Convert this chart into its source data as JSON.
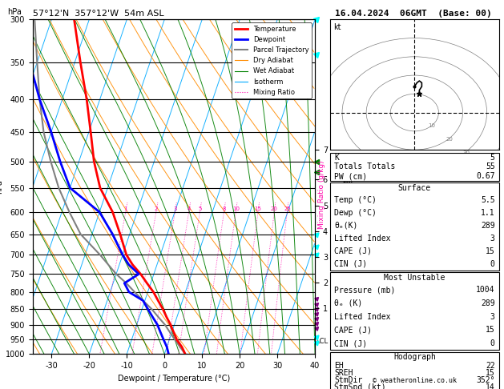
{
  "title_left": "57°12'N  357°12'W  54m ASL",
  "title_right": "16.04.2024  06GMT  (Base: 00)",
  "xlabel": "Dewpoint / Temperature (°C)",
  "ylabel_left": "hPa",
  "pressure_ticks": [
    300,
    350,
    400,
    450,
    500,
    550,
    600,
    650,
    700,
    750,
    800,
    850,
    900,
    950,
    1000
  ],
  "temp_xticks": [
    -30,
    -20,
    -10,
    0,
    10,
    20,
    30,
    40
  ],
  "km_ticks": [
    1,
    2,
    3,
    4,
    5,
    6,
    7
  ],
  "km_pressures": [
    847,
    773,
    705,
    643,
    586,
    533,
    480
  ],
  "mixing_ratio_values": [
    1,
    2,
    3,
    4,
    5,
    8,
    10,
    15,
    20,
    25
  ],
  "temp_profile_pressure": [
    1000,
    975,
    950,
    925,
    900,
    875,
    850,
    825,
    800,
    775,
    750,
    725,
    700,
    650,
    600,
    550,
    500,
    450,
    400,
    350,
    300
  ],
  "temp_profile_temp": [
    5.5,
    4.0,
    2.0,
    0.5,
    -1.0,
    -2.8,
    -4.5,
    -6.5,
    -8.5,
    -11.0,
    -13.5,
    -16.5,
    -19.0,
    -22.5,
    -26.5,
    -32.0,
    -36.0,
    -39.5,
    -43.5,
    -48.5,
    -54.0
  ],
  "dewp_profile_pressure": [
    1000,
    975,
    950,
    925,
    900,
    875,
    850,
    825,
    800,
    775,
    750,
    725,
    700,
    650,
    600,
    550,
    500,
    450,
    400,
    350,
    300
  ],
  "dewp_profile_temp": [
    1.1,
    0.0,
    -1.5,
    -3.0,
    -4.5,
    -6.5,
    -8.5,
    -10.5,
    -15.0,
    -17.0,
    -14.0,
    -17.5,
    -20.0,
    -24.5,
    -30.0,
    -40.0,
    -45.0,
    -50.0,
    -56.0,
    -62.0,
    -68.0
  ],
  "parcel_pressure": [
    1000,
    975,
    950,
    925,
    900,
    875,
    850,
    825,
    800,
    775,
    750,
    700,
    650,
    600,
    550,
    500,
    450,
    400,
    350,
    300
  ],
  "parcel_temp": [
    5.5,
    3.5,
    1.5,
    -0.5,
    -2.5,
    -5.0,
    -7.5,
    -10.5,
    -13.5,
    -16.5,
    -20.0,
    -26.0,
    -33.0,
    -38.0,
    -43.0,
    -47.5,
    -52.0,
    -56.0,
    -60.0,
    -64.5
  ],
  "background_color": "#ffffff",
  "temp_color": "#ff0000",
  "dewp_color": "#0000ff",
  "parcel_color": "#808080",
  "dry_adiabat_color": "#ff8c00",
  "wet_adiabat_color": "#008000",
  "isotherm_color": "#00aaff",
  "mixing_ratio_color": "#ff00aa",
  "lcl_pressure": 955,
  "info_K": 5,
  "info_TT": 55,
  "info_PW": 0.67,
  "surf_temp": 5.5,
  "surf_dewp": 1.1,
  "surf_theta_e": 289,
  "surf_li": 3,
  "surf_cape": 15,
  "surf_cin": 0,
  "mu_pressure": 1004,
  "mu_theta_e": 289,
  "mu_li": 3,
  "mu_cape": 15,
  "mu_cin": 0,
  "hodo_EH": 22,
  "hodo_SREH": 15,
  "hodo_StmDir": 352,
  "hodo_StmSpd": 14
}
